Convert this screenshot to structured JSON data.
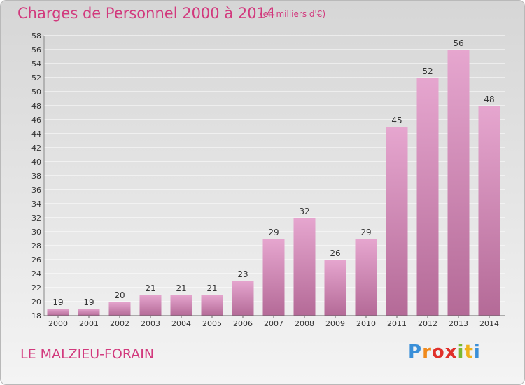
{
  "title": "Charges de Personnel 2000 à 2014",
  "subtitle": "(en milliers d'€)",
  "commune": "LE MALZIEU-FORAIN",
  "logo": {
    "letters": [
      "P",
      "r",
      "o",
      "x",
      "i",
      "t",
      "i"
    ],
    "colors": [
      "#3a8fd8",
      "#f08a1c",
      "#e0302a",
      "#e0302a",
      "#7bb832",
      "#f0b21c",
      "#3a8fd8"
    ]
  },
  "colors": {
    "accent": "#d2397d",
    "bar_top": "#e6a6cf",
    "bar_bottom": "#b46a97"
  },
  "chart_data": {
    "type": "bar",
    "categories": [
      "2000",
      "2001",
      "2002",
      "2003",
      "2004",
      "2005",
      "2006",
      "2007",
      "2008",
      "2009",
      "2010",
      "2011",
      "2012",
      "2013",
      "2014"
    ],
    "values": [
      19,
      19,
      20,
      21,
      21,
      21,
      23,
      29,
      32,
      26,
      29,
      45,
      52,
      56,
      48
    ],
    "ylim": [
      18,
      58
    ],
    "yticks": [
      18,
      20,
      22,
      24,
      26,
      28,
      30,
      32,
      34,
      36,
      38,
      40,
      42,
      44,
      46,
      48,
      50,
      52,
      54,
      56,
      58
    ],
    "grid": true,
    "legend": "none"
  }
}
